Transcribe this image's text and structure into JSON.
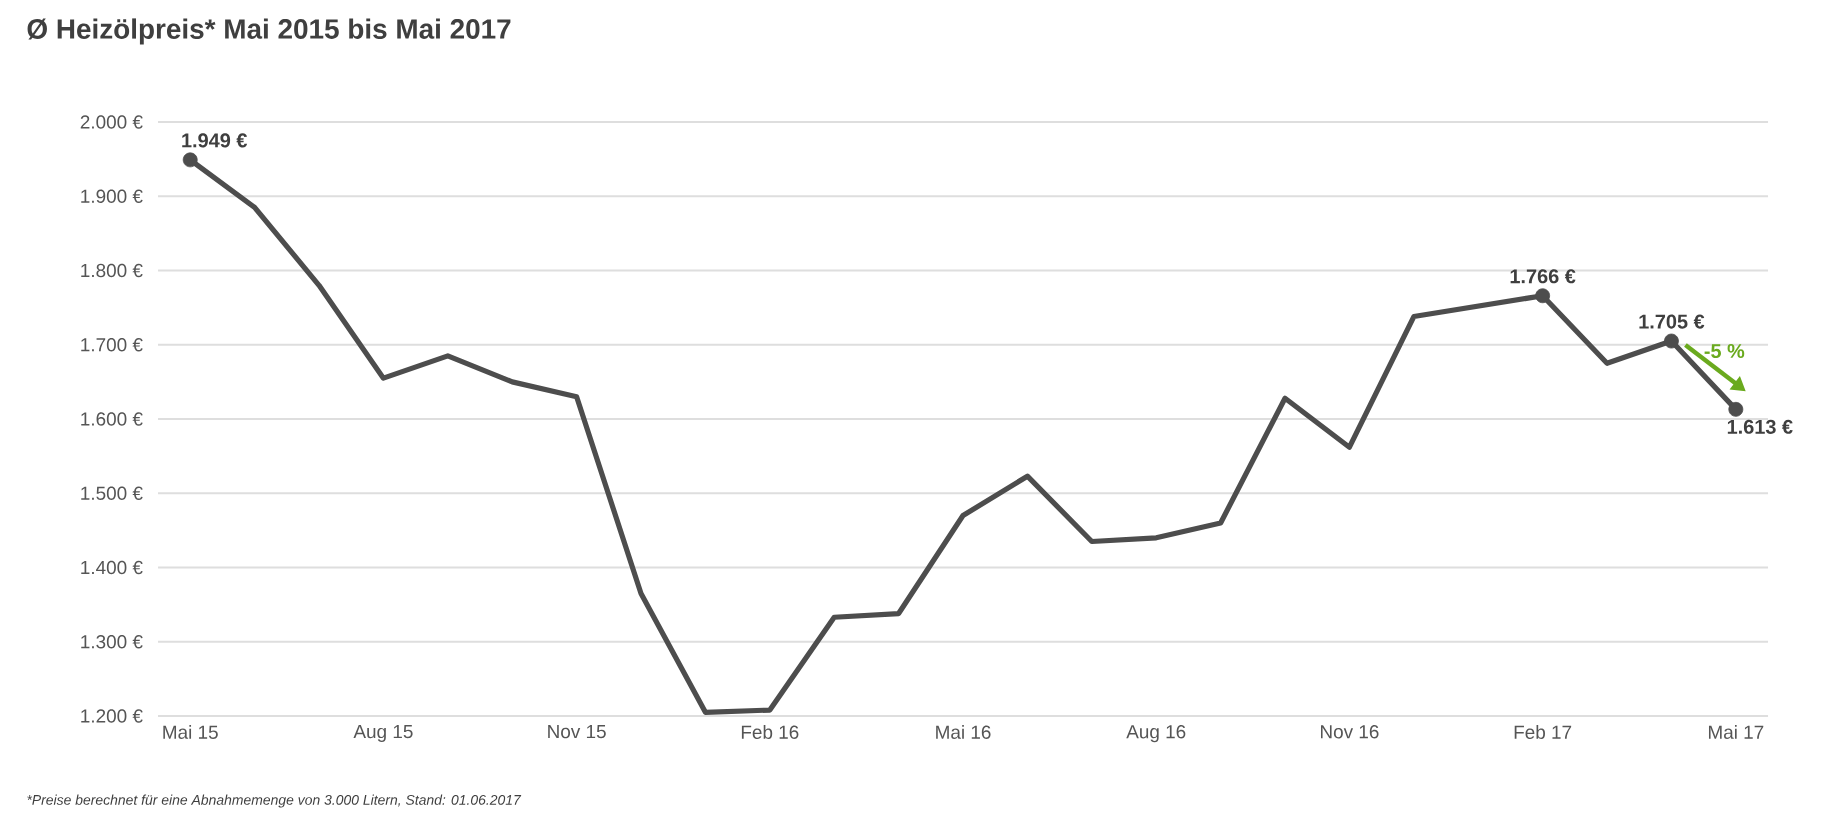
{
  "chart_data": {
    "type": "line",
    "title": "Ø Heizölpreis* Mai 2015 bis Mai 2017",
    "categories": [
      "Mai 15",
      null,
      null,
      "Aug 15",
      null,
      null,
      "Nov 15",
      null,
      null,
      "Feb 16",
      null,
      null,
      "Mai 16",
      null,
      null,
      "Aug 16",
      null,
      null,
      "Nov 16",
      null,
      null,
      "Feb 17",
      null,
      null,
      "Mai 17"
    ],
    "series": [
      {
        "color": "#4d4d4d",
        "values": [
          1949,
          1885,
          1780,
          1655,
          1685,
          1650,
          1630,
          1365,
          1205,
          1208,
          1333,
          1338,
          1470,
          1523,
          1435,
          1440,
          1460,
          1628,
          1562,
          1738,
          1752,
          1766,
          1675,
          1705,
          1613
        ],
        "value_labels": [
          "1.949 €",
          null,
          null,
          null,
          null,
          null,
          null,
          null,
          null,
          null,
          null,
          null,
          null,
          null,
          null,
          null,
          null,
          null,
          null,
          null,
          null,
          "1.766 €",
          null,
          "1.705 €",
          "1.613 €"
        ]
      }
    ],
    "ylim": [
      1200,
      2000
    ],
    "yticks": [
      {
        "value": 1200,
        "label": "1.200 €"
      },
      {
        "value": 1300,
        "label": "1.300 €"
      },
      {
        "value": 1400,
        "label": "1.400 €"
      },
      {
        "value": 1500,
        "label": "1.500 €"
      },
      {
        "value": 1600,
        "label": "1.600 €"
      },
      {
        "value": 1700,
        "label": "1.700 €"
      },
      {
        "value": 1800,
        "label": "1.800 €"
      },
      {
        "value": 1900,
        "label": "1.900 €"
      },
      {
        "value": 2000,
        "label": "2.000 €"
      }
    ],
    "grid": "y",
    "line_style": "solid",
    "annotations": [
      "-5 %",
      "*Preise berechnet für eine Abnahmemenge von 3.000 Litern, Stand: 01.06.2017"
    ]
  }
}
